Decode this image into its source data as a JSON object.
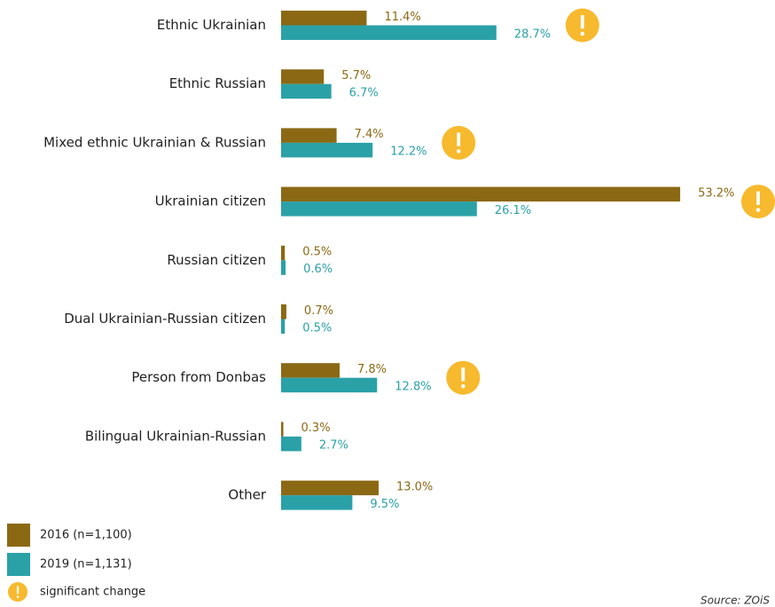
{
  "chart_data": {
    "type": "bar",
    "orientation": "horizontal",
    "categories": [
      "Ethnic Ukrainian",
      "Ethnic Russian",
      "Mixed ethnic Ukrainian & Russian",
      "Ukrainian citizen",
      "Russian citizen",
      "Dual Ukrainian-Russian citizen",
      "Person from Donbas",
      "Bilingual Ukrainian-Russian",
      "Other"
    ],
    "series": [
      {
        "name": "2016 (n=1,100)",
        "color": "#8b6914",
        "values": [
          11.4,
          5.7,
          7.4,
          53.2,
          0.5,
          0.7,
          7.8,
          0.3,
          13.0
        ],
        "value_labels": [
          "11.4%",
          "5.7%",
          "7.4%",
          "53.2%",
          "0.5%",
          "0.7%",
          "7.8%",
          "0.3%",
          "13.0%"
        ]
      },
      {
        "name": "2019 (n=1,131)",
        "color": "#2aa1a7",
        "values": [
          28.7,
          6.7,
          12.2,
          26.1,
          0.6,
          0.5,
          12.8,
          2.7,
          9.5
        ],
        "value_labels": [
          "28.7%",
          "6.7%",
          "12.2%",
          "26.1%",
          "0.6%",
          "0.5%",
          "12.8%",
          "2.7%",
          "9.5%"
        ]
      }
    ],
    "significant": [
      true,
      false,
      true,
      true,
      false,
      false,
      true,
      false,
      false
    ],
    "significant_label": "significant change",
    "significant_color": "#f7b92d",
    "source": "Source: ZOiS"
  }
}
